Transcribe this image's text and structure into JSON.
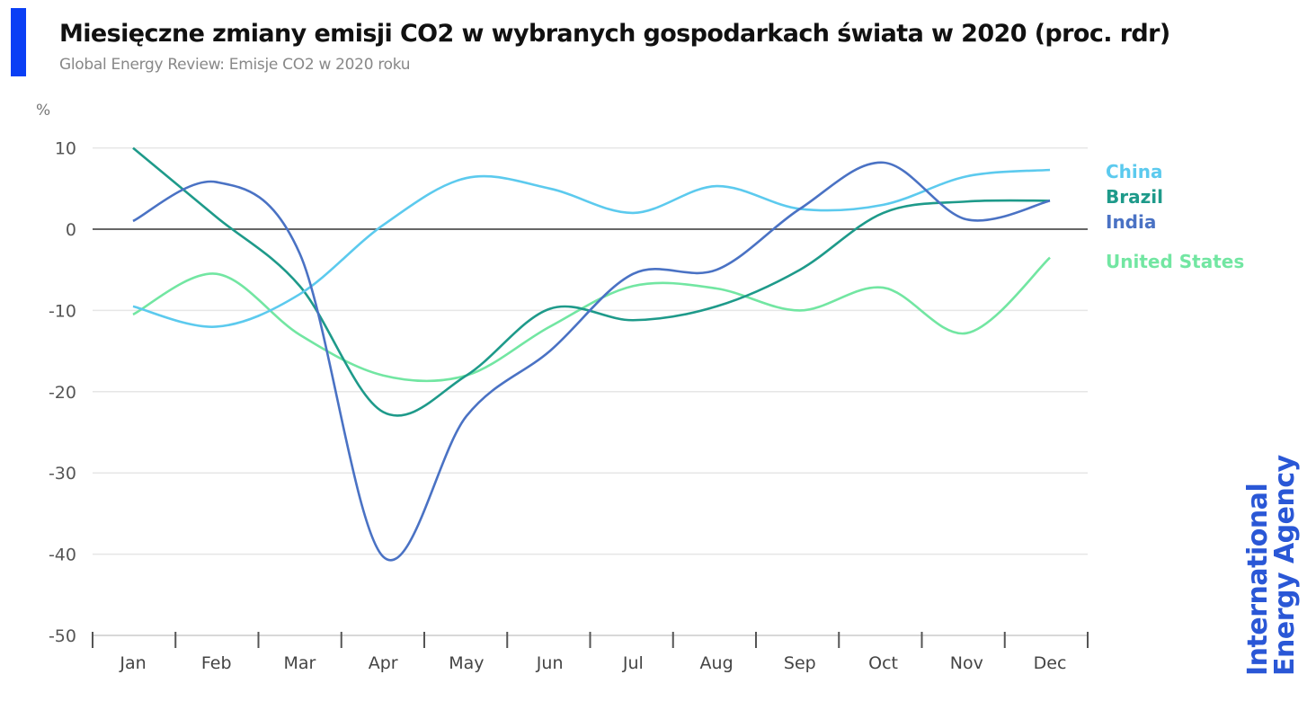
{
  "header": {
    "title": "Miesięczne zmiany emisji CO2 w wybranych gospodarkach świata w 2020 (proc. rdr)",
    "subtitle": "Global Energy Review: Emisje CO2 w 2020 roku",
    "accent_color": "#0a3ff5"
  },
  "logo": {
    "line1": "International",
    "line2": "Energy Agency"
  },
  "chart_data": {
    "type": "line",
    "ylabel": "%",
    "ylim": [
      -50,
      10
    ],
    "yticks": [
      10,
      0,
      -10,
      -20,
      -30,
      -40,
      -50
    ],
    "grid": true,
    "legend_placement": "right",
    "categories": [
      "Jan",
      "Feb",
      "Mar",
      "Apr",
      "May",
      "Jun",
      "Jul",
      "Aug",
      "Sep",
      "Oct",
      "Nov",
      "Dec"
    ],
    "series": [
      {
        "name": "China",
        "color": "#5ccaee",
        "values": [
          -9.5,
          -12,
          -8,
          0.5,
          6.3,
          5,
          2,
          5.3,
          2.5,
          3,
          6.5,
          7.3
        ]
      },
      {
        "name": "Brazil",
        "color": "#1e9a8a",
        "values": [
          10,
          1.5,
          -7,
          -22.5,
          -18,
          -9.8,
          -11.2,
          -9.5,
          -5,
          2,
          3.4,
          3.5
        ]
      },
      {
        "name": "India",
        "color": "#4a72c4",
        "values": [
          1,
          5.8,
          -3,
          -40.3,
          -23,
          -15,
          -5.5,
          -5,
          2.5,
          8.2,
          1.2,
          3.5
        ]
      },
      {
        "name": "United States",
        "color": "#72e6a2",
        "values": [
          -10.5,
          -5.5,
          -13,
          -18,
          -18,
          -12,
          -7,
          -7.3,
          -10,
          -7.2,
          -12.8,
          -3.5
        ]
      }
    ]
  }
}
